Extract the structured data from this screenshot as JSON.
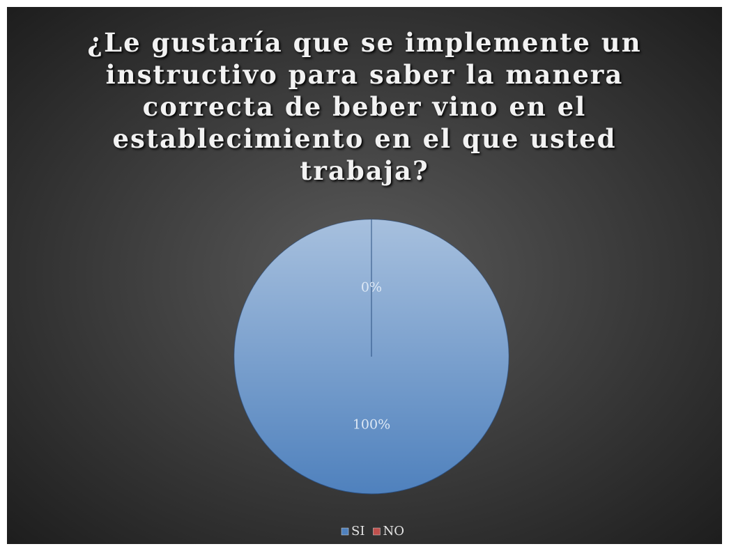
{
  "chart_data": {
    "type": "pie",
    "title": "¿Le gustaría que se implemente un instructivo para saber la manera correcta de beber vino en el establecimiento en el que usted trabaja?",
    "categories": [
      "SI",
      "NO"
    ],
    "values": [
      100,
      0
    ],
    "value_labels": [
      "100%",
      "0%"
    ],
    "colors": [
      "#4f81bd",
      "#c0504d"
    ],
    "legend": "bottom"
  }
}
